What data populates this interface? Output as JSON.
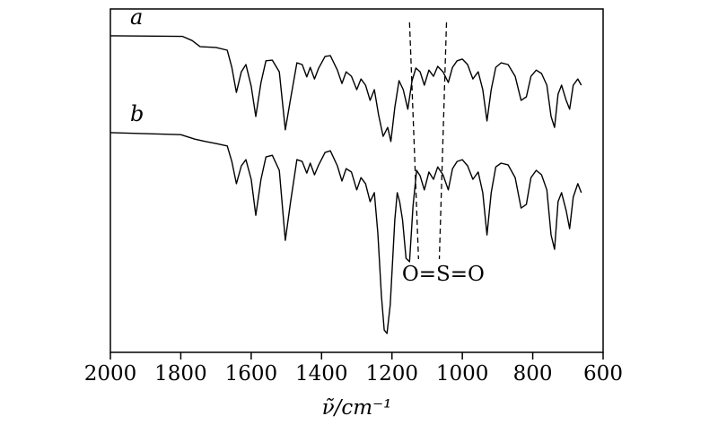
{
  "figure": {
    "background": "#ffffff",
    "line_color": "#000000"
  },
  "chart_data": {
    "type": "line",
    "title": "",
    "xlabel": "ν̃/cm⁻¹",
    "ylabel": "",
    "grid": false,
    "legend": "none",
    "x_axis": {
      "min": 600,
      "max": 2000,
      "reversed": true,
      "ticks": [
        2000,
        1800,
        1600,
        1400,
        1200,
        1000,
        800,
        600
      ]
    },
    "y_axis": {
      "min": 0,
      "max": 100,
      "units": "transmittance, arbitrary units (curves vertically offset)",
      "ticks": []
    },
    "series": [
      {
        "name": "a",
        "label": "a",
        "points": [
          [
            2000,
            92.2
          ],
          [
            1795,
            92.0
          ],
          [
            1768,
            90.8
          ],
          [
            1745,
            89.0
          ],
          [
            1700,
            88.8
          ],
          [
            1668,
            88.0
          ],
          [
            1655,
            83.0
          ],
          [
            1642,
            75.7
          ],
          [
            1628,
            81.7
          ],
          [
            1615,
            83.8
          ],
          [
            1600,
            77.5
          ],
          [
            1587,
            68.7
          ],
          [
            1572,
            78.6
          ],
          [
            1558,
            84.9
          ],
          [
            1540,
            85.1
          ],
          [
            1520,
            81.7
          ],
          [
            1503,
            64.8
          ],
          [
            1488,
            73.9
          ],
          [
            1470,
            84.3
          ],
          [
            1455,
            83.8
          ],
          [
            1442,
            80.2
          ],
          [
            1432,
            83.0
          ],
          [
            1420,
            79.6
          ],
          [
            1408,
            82.8
          ],
          [
            1390,
            86.2
          ],
          [
            1375,
            86.4
          ],
          [
            1355,
            82.2
          ],
          [
            1342,
            78.3
          ],
          [
            1330,
            81.7
          ],
          [
            1315,
            80.4
          ],
          [
            1300,
            76.5
          ],
          [
            1288,
            79.6
          ],
          [
            1275,
            77.8
          ],
          [
            1262,
            73.4
          ],
          [
            1250,
            76.5
          ],
          [
            1238,
            69.2
          ],
          [
            1225,
            62.9
          ],
          [
            1212,
            65.5
          ],
          [
            1203,
            61.4
          ],
          [
            1192,
            71.3
          ],
          [
            1180,
            79.1
          ],
          [
            1168,
            76.5
          ],
          [
            1155,
            70.8
          ],
          [
            1143,
            79.1
          ],
          [
            1132,
            82.8
          ],
          [
            1120,
            81.7
          ],
          [
            1108,
            77.8
          ],
          [
            1095,
            82.2
          ],
          [
            1082,
            80.4
          ],
          [
            1070,
            83.3
          ],
          [
            1055,
            81.7
          ],
          [
            1040,
            78.6
          ],
          [
            1028,
            83.0
          ],
          [
            1015,
            84.9
          ],
          [
            1000,
            85.4
          ],
          [
            985,
            83.8
          ],
          [
            970,
            79.6
          ],
          [
            955,
            81.7
          ],
          [
            942,
            76.5
          ],
          [
            930,
            67.4
          ],
          [
            918,
            76.5
          ],
          [
            905,
            83.0
          ],
          [
            890,
            84.3
          ],
          [
            870,
            83.8
          ],
          [
            850,
            80.4
          ],
          [
            833,
            73.4
          ],
          [
            818,
            74.4
          ],
          [
            805,
            80.4
          ],
          [
            790,
            82.2
          ],
          [
            775,
            81.2
          ],
          [
            760,
            77.8
          ],
          [
            748,
            68.7
          ],
          [
            738,
            65.5
          ],
          [
            728,
            75.2
          ],
          [
            718,
            77.8
          ],
          [
            705,
            73.4
          ],
          [
            695,
            70.8
          ],
          [
            685,
            77.8
          ],
          [
            672,
            79.6
          ],
          [
            662,
            77.8
          ]
        ]
      },
      {
        "name": "b",
        "label": "b",
        "points": [
          [
            2000,
            64.0
          ],
          [
            1800,
            63.4
          ],
          [
            1760,
            62.1
          ],
          [
            1730,
            61.4
          ],
          [
            1700,
            60.8
          ],
          [
            1668,
            60.1
          ],
          [
            1655,
            55.6
          ],
          [
            1642,
            49.1
          ],
          [
            1628,
            54.3
          ],
          [
            1615,
            56.1
          ],
          [
            1600,
            50.4
          ],
          [
            1587,
            39.9
          ],
          [
            1572,
            50.4
          ],
          [
            1558,
            56.9
          ],
          [
            1540,
            57.4
          ],
          [
            1520,
            53.0
          ],
          [
            1503,
            32.6
          ],
          [
            1488,
            43.9
          ],
          [
            1470,
            56.1
          ],
          [
            1455,
            55.6
          ],
          [
            1442,
            52.2
          ],
          [
            1432,
            55.1
          ],
          [
            1420,
            51.7
          ],
          [
            1408,
            54.6
          ],
          [
            1390,
            58.2
          ],
          [
            1375,
            58.7
          ],
          [
            1355,
            54.3
          ],
          [
            1342,
            49.9
          ],
          [
            1330,
            53.5
          ],
          [
            1315,
            52.5
          ],
          [
            1300,
            47.3
          ],
          [
            1288,
            50.9
          ],
          [
            1275,
            49.1
          ],
          [
            1262,
            43.9
          ],
          [
            1250,
            46.5
          ],
          [
            1240,
            34.7
          ],
          [
            1230,
            16.4
          ],
          [
            1222,
            6.5
          ],
          [
            1214,
            5.5
          ],
          [
            1205,
            13.8
          ],
          [
            1198,
            26.9
          ],
          [
            1192,
            38.6
          ],
          [
            1185,
            46.5
          ],
          [
            1178,
            43.9
          ],
          [
            1170,
            38.6
          ],
          [
            1160,
            27.4
          ],
          [
            1150,
            26.4
          ],
          [
            1140,
            42.6
          ],
          [
            1130,
            53.0
          ],
          [
            1120,
            51.4
          ],
          [
            1108,
            47.3
          ],
          [
            1095,
            52.5
          ],
          [
            1082,
            50.4
          ],
          [
            1070,
            54.0
          ],
          [
            1055,
            51.7
          ],
          [
            1040,
            47.3
          ],
          [
            1028,
            53.5
          ],
          [
            1015,
            55.6
          ],
          [
            1000,
            56.1
          ],
          [
            985,
            54.3
          ],
          [
            970,
            50.4
          ],
          [
            955,
            52.5
          ],
          [
            942,
            46.5
          ],
          [
            930,
            34.2
          ],
          [
            918,
            46.5
          ],
          [
            905,
            54.0
          ],
          [
            890,
            55.1
          ],
          [
            870,
            54.6
          ],
          [
            850,
            50.9
          ],
          [
            833,
            42.0
          ],
          [
            818,
            43.1
          ],
          [
            805,
            50.9
          ],
          [
            790,
            53.0
          ],
          [
            775,
            51.7
          ],
          [
            760,
            47.3
          ],
          [
            748,
            34.2
          ],
          [
            738,
            30.0
          ],
          [
            728,
            43.9
          ],
          [
            718,
            46.5
          ],
          [
            705,
            41.3
          ],
          [
            695,
            36.0
          ],
          [
            685,
            45.2
          ],
          [
            672,
            49.1
          ],
          [
            662,
            46.5
          ]
        ]
      }
    ],
    "annotations": [
      {
        "label": "O=S=O",
        "style": "dashed-guide-lines",
        "marked_wavenumbers": [
          1150,
          1045
        ]
      }
    ]
  }
}
